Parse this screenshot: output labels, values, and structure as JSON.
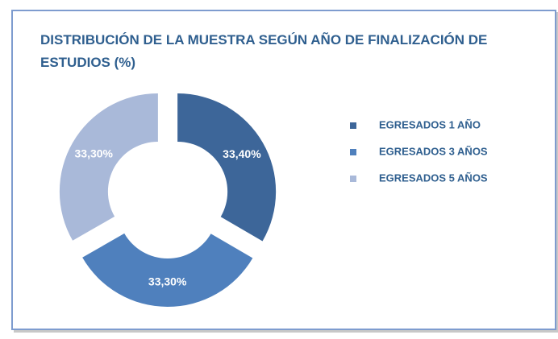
{
  "chart_data": {
    "type": "donut",
    "title": "DISTRIBUCIÓN DE LA MUESTRA SEGÚN AÑO DE FINALIZACIÓN DE ESTUDIOS (%)",
    "categories": [
      "EGRESADOS 1 AÑO",
      "EGRESADOS 3 AÑOS",
      "EGRESADOS 5 AÑOS"
    ],
    "values": [
      33.4,
      33.3,
      33.3
    ],
    "value_labels": [
      "33,40%",
      "33,30%",
      "33,30%"
    ],
    "colors": [
      "#3d6699",
      "#4f80bd",
      "#a9b9d9"
    ],
    "legend": "right"
  }
}
